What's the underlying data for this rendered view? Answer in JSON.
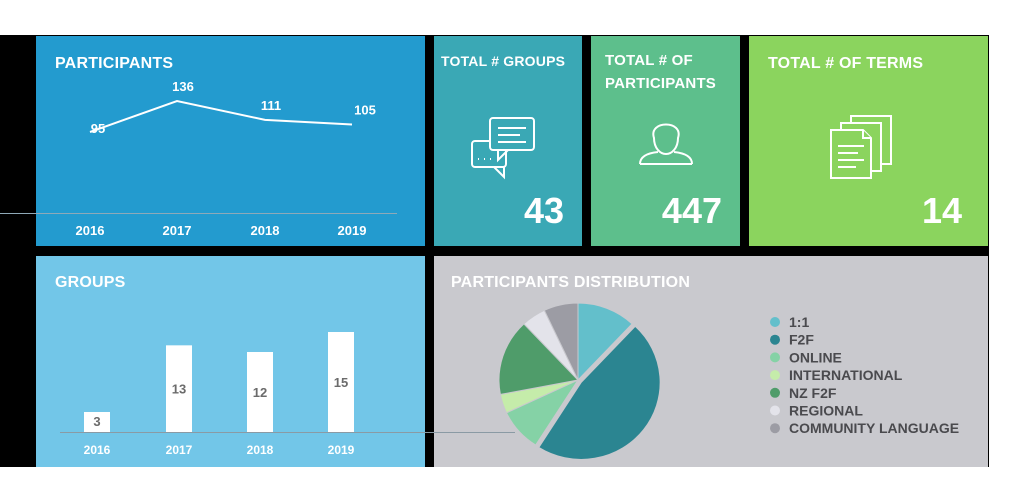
{
  "participants_panel": {
    "title": "PARTICIPANTS"
  },
  "groups_panel": {
    "title": "GROUPS"
  },
  "total_groups": {
    "title": "TOTAL # GROUPS",
    "value": "43"
  },
  "total_participants": {
    "title_line1": "TOTAL # OF",
    "title_line2": "PARTICIPANTS",
    "value": "447"
  },
  "total_terms": {
    "title": "TOTAL # OF TERMS",
    "value": "14"
  },
  "distribution_panel": {
    "title": "PARTICIPANTS DISTRIBUTION"
  },
  "colors": {
    "participants": "#239bcf",
    "groups": "#72c6e8",
    "total_groups": "#3aa8b5",
    "total_participants": "#5dbf8c",
    "total_terms": "#8bd45e",
    "distribution": "#c9c9ce"
  },
  "chart_data": [
    {
      "type": "line",
      "title": "PARTICIPANTS",
      "categories": [
        "2016",
        "2017",
        "2018",
        "2019"
      ],
      "values": [
        95,
        136,
        111,
        105
      ],
      "labels": [
        "95",
        "136",
        "111",
        "105"
      ]
    },
    {
      "type": "bar",
      "title": "GROUPS",
      "categories": [
        "2016",
        "2017",
        "2018",
        "2019"
      ],
      "values": [
        3,
        13,
        12,
        15
      ],
      "labels": [
        "3",
        "13",
        "12",
        "15"
      ]
    },
    {
      "type": "pie",
      "title": "PARTICIPANTS DISTRIBUTION",
      "legend": "right",
      "slices": [
        {
          "label": "1:1",
          "value": 12,
          "color": "#63bfcb"
        },
        {
          "label": "F2F",
          "value": 47,
          "color": "#2b8591"
        },
        {
          "label": "ONLINE",
          "value": 9,
          "color": "#85d2a6"
        },
        {
          "label": "INTERNATIONAL",
          "value": 4,
          "color": "#c5ecaa"
        },
        {
          "label": "NZ F2F",
          "value": 16,
          "color": "#4f9c6a"
        },
        {
          "label": "REGIONAL",
          "value": 5,
          "color": "#e3e3ea"
        },
        {
          "label": "COMMUNITY LANGUAGE",
          "value": 7,
          "color": "#9c9ca4"
        }
      ]
    }
  ]
}
